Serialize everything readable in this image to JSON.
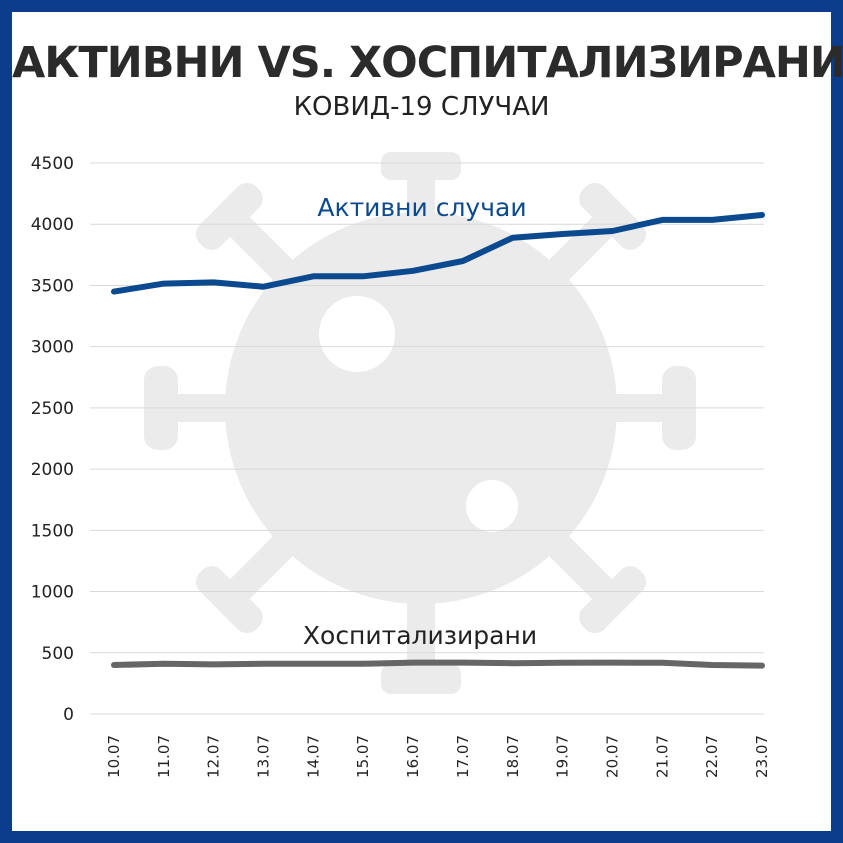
{
  "title": "АКТИВНИ VS. ХОСПИТАЛИЗИРАНИ",
  "subtitle": "КОВИД-19 СЛУЧАИ",
  "colors": {
    "frame": "#0b3d8c",
    "active": "#0b4a8e",
    "hospitalized": "#666666",
    "grid": "#d9d9d9",
    "watermark": "#ebebeb"
  },
  "watermark_icon": "virus-icon",
  "chart_data": {
    "type": "line",
    "categories": [
      "10.07",
      "11.07",
      "12.07",
      "13.07",
      "14.07",
      "15.07",
      "16.07",
      "17.07",
      "18.07",
      "19.07",
      "20.07",
      "21.07",
      "22.07",
      "23.07"
    ],
    "series": [
      {
        "name": "Активни случаи",
        "values": [
          3450,
          3515,
          3525,
          3490,
          3575,
          3575,
          3620,
          3700,
          3890,
          3920,
          3945,
          4035,
          4035,
          4075
        ]
      },
      {
        "name": "Хоспитализирани",
        "values": [
          400,
          410,
          405,
          410,
          410,
          410,
          420,
          420,
          415,
          418,
          420,
          418,
          400,
          395
        ]
      }
    ],
    "ylim": [
      0,
      4500
    ],
    "yticks": [
      0,
      500,
      1000,
      1500,
      2000,
      2500,
      3000,
      3500,
      4000,
      4500
    ],
    "grid": true
  }
}
